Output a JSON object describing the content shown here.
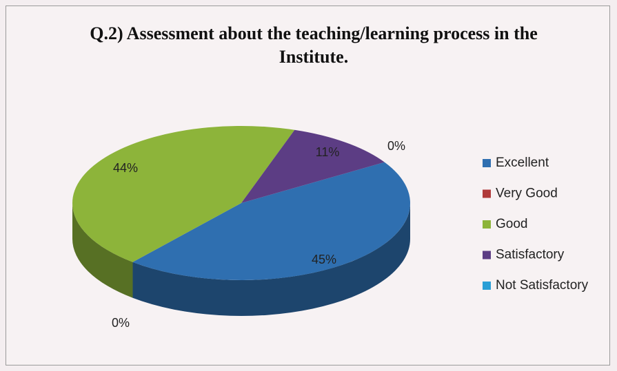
{
  "chart_data": {
    "type": "pie",
    "title": "Q.2) Assessment about the teaching/learning process in the Institute.",
    "categories": [
      "Excellent",
      "Very Good",
      "Good",
      "Satisfactory",
      "Not Satisfactory"
    ],
    "values": [
      45,
      0,
      44,
      11,
      0
    ],
    "value_labels": [
      "45%",
      "0%",
      "44%",
      "11%",
      "0%"
    ],
    "colors": [
      "#2f6fb0",
      "#b03a3a",
      "#8db43a",
      "#5c3d84",
      "#2a9fd6"
    ],
    "legend": "right"
  }
}
